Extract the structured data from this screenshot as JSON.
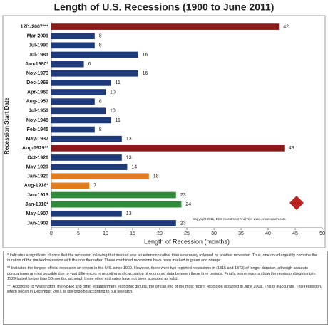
{
  "chart_data": {
    "type": "bar",
    "orientation": "horizontal",
    "title": "Length of U.S. Recessions (1900 to June 2011)",
    "x_label": "Length of Recession (months)",
    "y_label": "Recession Start Date",
    "categories": [
      "12/1/2007***",
      "Mar-2001",
      "Jul-1990",
      "Jul-1981",
      "Jan-1980*",
      "Nov-1973",
      "Dec-1969",
      "Apr-1960",
      "Aug-1957",
      "Jul-1953",
      "Nov-1948",
      "Feb-1945",
      "May-1937",
      "Aug-1929**",
      "Oct-1926",
      "May-1923",
      "Jan-1920",
      "Aug-1918*",
      "Jan-1913",
      "Jan-1910*",
      "May-1907",
      "Jan-1902"
    ],
    "values": [
      42,
      8,
      8,
      16,
      6,
      16,
      11,
      10,
      8,
      10,
      11,
      8,
      13,
      43,
      13,
      14,
      18,
      7,
      23,
      24,
      13,
      23
    ],
    "colors": [
      "#8b1a1a",
      "#1f3a7a",
      "#1f3a7a",
      "#1f3a7a",
      "#1f3a7a",
      "#1f3a7a",
      "#1f3a7a",
      "#1f3a7a",
      "#1f3a7a",
      "#1f3a7a",
      "#1f3a7a",
      "#1f3a7a",
      "#1f3a7a",
      "#8b1a1a",
      "#1f3a7a",
      "#1f3a7a",
      "#e07b1f",
      "#e07b1f",
      "#2e8b3a",
      "#2e8b3a",
      "#1f3a7a",
      "#1f3a7a"
    ],
    "xlim": [
      0,
      50
    ],
    "xticks": [
      0,
      5,
      10,
      15,
      20,
      25,
      30,
      35,
      40,
      45,
      50
    ],
    "grid": false,
    "copyright": "Copyright 2011, ECS Investment Analytics   www.ecsresearch.com"
  },
  "notes": [
    "* Indicates a significant chance that the recession following that marked was an extension rather than a recovery followed by another recession. Thus, one could arguably combine the duration of the marked recession with the one thereafter. These combined recessions have been marked in green and orange.",
    "** Indicates the longest official recession on record in the U.S. since 1900. However, there were two reported recessions in (1815 and 1873) of longer duration, although accurate comparisons are not possible due to vast differences in reporting and calculation of economic data between these time periods. Finally, some reports show the recession beginning in 1929 lasted longer than 50 months, although these other estimates have not been accepted as valid.",
    "*** According to Washington, the NBER and other establishment economic groups, the official end of the most recent recession occurred in June 2009. This is inaccurate. This recession, which began in December 2007, is still ongoing according to our research."
  ]
}
